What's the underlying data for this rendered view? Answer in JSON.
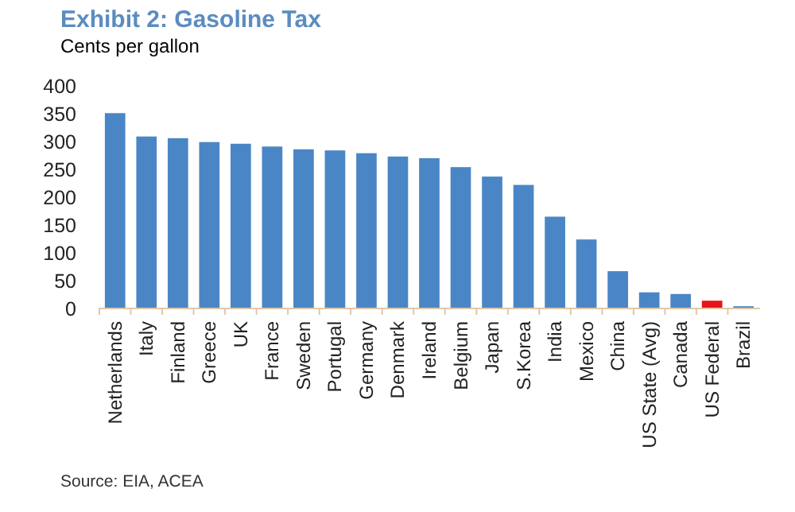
{
  "chart_data": {
    "type": "bar",
    "title": "Exhibit 2: Gasoline Tax",
    "subtitle": "Cents per gallon",
    "categories": [
      "Netherlands",
      "Italy",
      "Finland",
      "Greece",
      "UK",
      "France",
      "Sweden",
      "Portugal",
      "Germany",
      "Denmark",
      "Ireland",
      "Belgium",
      "Japan",
      "S.Korea",
      "India",
      "Mexico",
      "China",
      "US State (Avg)",
      "Canada",
      "US Federal",
      "Brazil"
    ],
    "values": [
      351,
      309,
      306,
      299,
      296,
      291,
      286,
      284,
      279,
      273,
      270,
      254,
      237,
      222,
      165,
      124,
      67,
      29,
      26,
      14,
      4
    ],
    "colors": [
      "#4a86c5",
      "#4a86c5",
      "#4a86c5",
      "#4a86c5",
      "#4a86c5",
      "#4a86c5",
      "#4a86c5",
      "#4a86c5",
      "#4a86c5",
      "#4a86c5",
      "#4a86c5",
      "#4a86c5",
      "#4a86c5",
      "#4a86c5",
      "#4a86c5",
      "#4a86c5",
      "#4a86c5",
      "#4a86c5",
      "#4a86c5",
      "#e8141b",
      "#4a86c5"
    ],
    "ylim": [
      0,
      400
    ],
    "yticks": [
      0,
      50,
      100,
      150,
      200,
      250,
      300,
      350,
      400
    ],
    "grid": false,
    "annotations": [
      "Source: EIA, ACEA"
    ]
  }
}
